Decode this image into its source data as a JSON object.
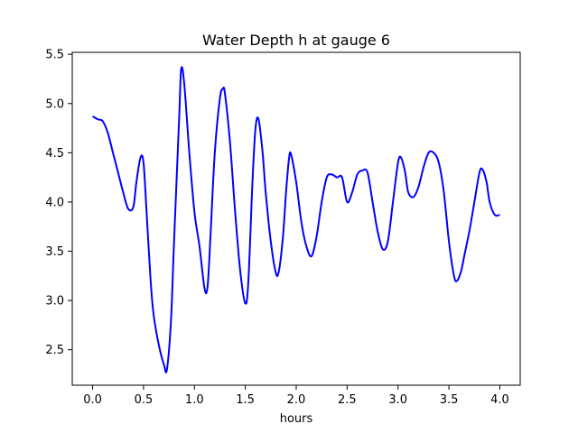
{
  "chart_data": {
    "type": "line",
    "title": "Water Depth h at gauge 6",
    "xlabel": "hours",
    "ylabel": "",
    "xlim": [
      -0.2,
      4.2
    ],
    "ylim": [
      2.14,
      5.52
    ],
    "xticks": [
      0.0,
      0.5,
      1.0,
      1.5,
      2.0,
      2.5,
      3.0,
      3.5,
      4.0
    ],
    "xtick_labels": [
      "0.0",
      "0.5",
      "1.0",
      "1.5",
      "2.0",
      "2.5",
      "3.0",
      "3.5",
      "4.0"
    ],
    "yticks": [
      2.5,
      3.0,
      3.5,
      4.0,
      4.5,
      5.0,
      5.5
    ],
    "ytick_labels": [
      "2.5",
      "3.0",
      "3.5",
      "4.0",
      "4.5",
      "5.0",
      "5.5"
    ],
    "grid": false,
    "legend": false,
    "series": [
      {
        "color": "#0000ff",
        "x": [
          0.0,
          0.05,
          0.1,
          0.15,
          0.2,
          0.25,
          0.3,
          0.35,
          0.4,
          0.43,
          0.47,
          0.5,
          0.53,
          0.57,
          0.6,
          0.65,
          0.7,
          0.73,
          0.77,
          0.8,
          0.85,
          0.87,
          0.9,
          0.95,
          1.0,
          1.05,
          1.1,
          1.13,
          1.16,
          1.2,
          1.25,
          1.28,
          1.3,
          1.35,
          1.4,
          1.45,
          1.5,
          1.53,
          1.57,
          1.6,
          1.63,
          1.67,
          1.7,
          1.75,
          1.8,
          1.83,
          1.87,
          1.9,
          1.93,
          1.95,
          2.0,
          2.05,
          2.1,
          2.15,
          2.2,
          2.25,
          2.3,
          2.35,
          2.4,
          2.45,
          2.5,
          2.55,
          2.6,
          2.65,
          2.7,
          2.75,
          2.8,
          2.85,
          2.9,
          2.95,
          3.0,
          3.03,
          3.07,
          3.1,
          3.15,
          3.2,
          3.25,
          3.3,
          3.35,
          3.4,
          3.45,
          3.5,
          3.55,
          3.58,
          3.62,
          3.65,
          3.7,
          3.75,
          3.8,
          3.83,
          3.87,
          3.9,
          3.95,
          4.0
        ],
        "y": [
          4.87,
          4.84,
          4.82,
          4.7,
          4.5,
          4.3,
          4.1,
          3.93,
          3.95,
          4.2,
          4.45,
          4.4,
          3.9,
          3.2,
          2.85,
          2.55,
          2.35,
          2.3,
          2.8,
          3.6,
          4.85,
          5.35,
          5.2,
          4.5,
          3.9,
          3.55,
          3.12,
          3.15,
          3.7,
          4.5,
          5.05,
          5.15,
          5.1,
          4.6,
          3.9,
          3.3,
          2.97,
          3.2,
          4.2,
          4.75,
          4.84,
          4.5,
          4.1,
          3.6,
          3.28,
          3.3,
          3.65,
          4.1,
          4.45,
          4.48,
          4.2,
          3.8,
          3.55,
          3.45,
          3.65,
          4.0,
          4.25,
          4.28,
          4.25,
          4.25,
          4.0,
          4.1,
          4.28,
          4.32,
          4.3,
          4.0,
          3.7,
          3.52,
          3.6,
          4.0,
          4.4,
          4.45,
          4.3,
          4.1,
          4.05,
          4.15,
          4.35,
          4.5,
          4.5,
          4.4,
          4.1,
          3.6,
          3.25,
          3.2,
          3.3,
          3.45,
          3.7,
          4.0,
          4.3,
          4.33,
          4.2,
          4.0,
          3.87,
          3.87
        ]
      }
    ]
  }
}
